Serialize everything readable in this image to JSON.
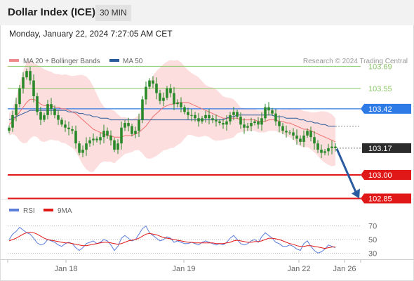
{
  "header": {
    "title": "Dollar Index (ICE)",
    "timeframe": "30 MIN",
    "datetime": "Monday, January 22, 2024 7:27:05 AM CET"
  },
  "legend": {
    "ma20_label": "MA 20 + Bollinger Bands",
    "ma50_label": "MA 50",
    "credit": "Research © 2024 Trading Central",
    "rsi_label": "RSI",
    "ma9_label": "9MA"
  },
  "colors": {
    "ma20": "#ee7070",
    "ma50": "#2a5a9a",
    "bollinger_fill": "#fdd8d8",
    "candle": "#2a8a2a",
    "resistance": "#8cc66a",
    "pivot": "#2e7ae6",
    "support": "#e01818",
    "last_price": "#2b2b2b",
    "rsi": "#5b7ddb",
    "rsi_ma": "#e01818",
    "arrow": "#2a5aa0"
  },
  "chart_data": {
    "type": "candlestick",
    "ylim": [
      102.79,
      103.79
    ],
    "levels": [
      {
        "value": 103.69,
        "label": "103.69",
        "role": "resistance"
      },
      {
        "value": 103.55,
        "label": "103.55",
        "role": "resistance"
      },
      {
        "value": 103.42,
        "label": "103.42",
        "role": "pivot"
      },
      {
        "value": 103.17,
        "label": "103.17",
        "role": "last"
      },
      {
        "value": 103.0,
        "label": "103.00",
        "role": "support"
      },
      {
        "value": 102.85,
        "label": "102.85",
        "role": "support"
      }
    ],
    "x_ticks": [
      "Jan 18",
      "Jan 19",
      "Jan 22",
      "Jan 26"
    ],
    "close": [
      103.3,
      103.38,
      103.45,
      103.55,
      103.62,
      103.66,
      103.6,
      103.5,
      103.4,
      103.35,
      103.38,
      103.45,
      103.42,
      103.38,
      103.35,
      103.32,
      103.3,
      103.29,
      103.28,
      103.2,
      103.14,
      103.16,
      103.2,
      103.22,
      103.23,
      103.22,
      103.24,
      103.28,
      103.25,
      103.22,
      103.16,
      103.2,
      103.3,
      103.33,
      103.31,
      103.26,
      103.28,
      103.35,
      103.48,
      103.56,
      103.6,
      103.58,
      103.52,
      103.47,
      103.49,
      103.55,
      103.52,
      103.45,
      103.46,
      103.43,
      103.4,
      103.38,
      103.38,
      103.36,
      103.34,
      103.36,
      103.38,
      103.36,
      103.35,
      103.34,
      103.33,
      103.32,
      103.34,
      103.38,
      103.4,
      103.37,
      103.32,
      103.3,
      103.31,
      103.33,
      103.34,
      103.32,
      103.36,
      103.43,
      103.41,
      103.39,
      103.34,
      103.31,
      103.28,
      103.27,
      103.27,
      103.25,
      103.23,
      103.21,
      103.25,
      103.28,
      103.24,
      103.2,
      103.16,
      103.14,
      103.15,
      103.17,
      103.18,
      103.17
    ],
    "ma20": [
      103.32,
      103.34,
      103.37,
      103.4,
      103.43,
      103.46,
      103.48,
      103.48,
      103.47,
      103.45,
      103.44,
      103.44,
      103.44,
      103.43,
      103.43,
      103.42,
      103.42,
      103.41,
      103.4,
      103.39,
      103.37,
      103.35,
      103.33,
      103.31,
      103.29,
      103.28,
      103.27,
      103.26,
      103.25,
      103.25,
      103.24,
      103.24,
      103.24,
      103.25,
      103.25,
      103.25,
      103.26,
      103.27,
      103.29,
      103.31,
      103.34,
      103.37,
      103.39,
      103.41,
      103.43,
      103.44,
      103.45,
      103.45,
      103.46,
      103.46,
      103.46,
      103.46,
      103.45,
      103.44,
      103.43,
      103.42,
      103.41,
      103.4,
      103.39,
      103.38,
      103.37,
      103.36,
      103.36,
      103.36,
      103.36,
      103.36,
      103.35,
      103.35,
      103.35,
      103.35,
      103.35,
      103.34,
      103.34,
      103.34,
      103.35,
      103.35,
      103.35,
      103.34,
      103.34,
      103.33,
      103.33,
      103.32,
      103.31,
      103.3,
      103.29,
      103.29,
      103.28,
      103.27,
      103.26,
      103.25,
      103.24,
      103.23,
      103.22,
      103.21
    ],
    "ma50": [
      103.35,
      103.36,
      103.37,
      103.38,
      103.39,
      103.4,
      103.41,
      103.41,
      103.41,
      103.41,
      103.41,
      103.41,
      103.41,
      103.41,
      103.41,
      103.41,
      103.41,
      103.4,
      103.4,
      103.4,
      103.39,
      103.39,
      103.38,
      103.38,
      103.37,
      103.37,
      103.36,
      103.36,
      103.36,
      103.35,
      103.35,
      103.35,
      103.35,
      103.35,
      103.35,
      103.35,
      103.35,
      103.35,
      103.35,
      103.35,
      103.35,
      103.35,
      103.35,
      103.35,
      103.35,
      103.35,
      103.35,
      103.35,
      103.35,
      103.35,
      103.35,
      103.35,
      103.35,
      103.35,
      103.35,
      103.35,
      103.35,
      103.35,
      103.35,
      103.35,
      103.35,
      103.35,
      103.36,
      103.37,
      103.37,
      103.38,
      103.38,
      103.38,
      103.38,
      103.38,
      103.38,
      103.38,
      103.38,
      103.38,
      103.38,
      103.38,
      103.37,
      103.37,
      103.37,
      103.36,
      103.36,
      103.36,
      103.36,
      103.35,
      103.35,
      103.34,
      103.34,
      103.33,
      103.33,
      103.32,
      103.32,
      103.31,
      103.31,
      103.31
    ],
    "ma50_projection": 103.31,
    "forecast_arrow": {
      "from": 103.17,
      "to": 102.85
    },
    "rsi": {
      "ylim": [
        20,
        80
      ],
      "ticks": [
        30,
        50,
        70
      ],
      "rsi": [
        50,
        58,
        62,
        68,
        64,
        60,
        58,
        52,
        45,
        42,
        44,
        50,
        48,
        46,
        42,
        40,
        44,
        46,
        44,
        38,
        34,
        38,
        44,
        46,
        48,
        44,
        46,
        50,
        48,
        42,
        34,
        40,
        52,
        56,
        52,
        48,
        50,
        58,
        66,
        70,
        60,
        56,
        52,
        48,
        50,
        54,
        52,
        46,
        48,
        46,
        44,
        44,
        46,
        44,
        42,
        46,
        48,
        46,
        44,
        42,
        44,
        42,
        46,
        52,
        56,
        50,
        44,
        42,
        44,
        48,
        50,
        46,
        54,
        60,
        56,
        52,
        46,
        44,
        40,
        40,
        42,
        40,
        36,
        34,
        44,
        48,
        40,
        34,
        30,
        32,
        36,
        42,
        40,
        38
      ],
      "ma": [
        48,
        50,
        52,
        55,
        58,
        60,
        61,
        60,
        58,
        55,
        52,
        50,
        49,
        48,
        47,
        46,
        45,
        45,
        44,
        43,
        42,
        41,
        41,
        42,
        43,
        44,
        45,
        46,
        46,
        45,
        44,
        43,
        44,
        46,
        48,
        49,
        50,
        52,
        55,
        58,
        59,
        58,
        57,
        55,
        53,
        52,
        51,
        50,
        49,
        48,
        47,
        46,
        46,
        45,
        45,
        45,
        45,
        45,
        45,
        44,
        44,
        44,
        45,
        46,
        48,
        49,
        48,
        47,
        46,
        46,
        47,
        47,
        48,
        50,
        52,
        52,
        51,
        50,
        48,
        46,
        44,
        43,
        41,
        40,
        40,
        41,
        41,
        40,
        39,
        38,
        37,
        38,
        39,
        39
      ]
    }
  }
}
